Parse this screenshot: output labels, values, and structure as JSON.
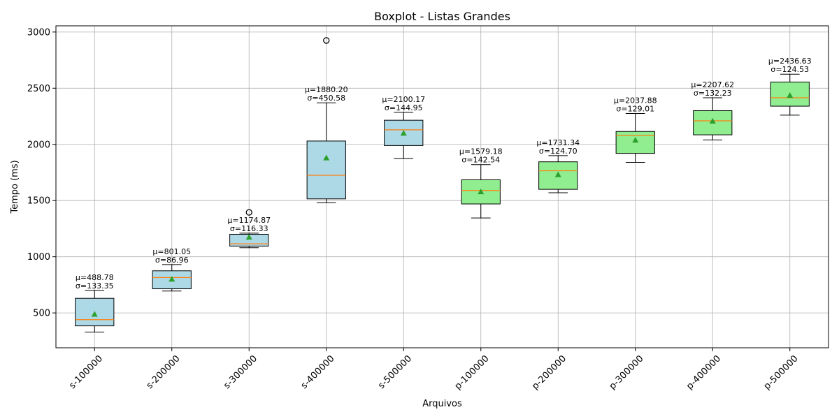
{
  "chart_data": {
    "type": "box",
    "title": "Boxplot - Listas Grandes",
    "xlabel": "Arquivos",
    "ylabel": "Tempo (ms)",
    "ylim": [
      190,
      3055
    ],
    "yticks": [
      500,
      1000,
      1500,
      2000,
      2500,
      3000
    ],
    "grid": true,
    "colors": {
      "sequential_fill": "#add8e6",
      "parallel_fill": "#90ee90",
      "median": "#ff7f0e",
      "mean_marker": "#2ca02c",
      "grid": "#b0b0b0"
    },
    "boxes": [
      {
        "label": "s-100000",
        "group": "sequential",
        "whisker_low": 330,
        "q1": 385,
        "median": 440,
        "q3": 630,
        "whisker_high": 700,
        "mean": 488.78,
        "outliers": [],
        "annot_mean": "μ=488.78",
        "annot_std": "σ=133.35"
      },
      {
        "label": "s-200000",
        "group": "sequential",
        "whisker_low": 695,
        "q1": 715,
        "median": 815,
        "q3": 875,
        "whisker_high": 930,
        "mean": 801.05,
        "outliers": [],
        "annot_mean": "μ=801.05",
        "annot_std": "σ=86.96"
      },
      {
        "label": "s-300000",
        "group": "sequential",
        "whisker_low": 1080,
        "q1": 1095,
        "median": 1115,
        "q3": 1200,
        "whisker_high": 1210,
        "mean": 1174.87,
        "outliers": [
          1395
        ],
        "annot_mean": "μ=1174.87",
        "annot_std": "σ=116.33"
      },
      {
        "label": "s-400000",
        "group": "sequential",
        "whisker_low": 1480,
        "q1": 1515,
        "median": 1725,
        "q3": 2030,
        "whisker_high": 2370,
        "mean": 1880.2,
        "outliers": [
          2925
        ],
        "annot_mean": "μ=1880.20",
        "annot_std": "σ=450.58"
      },
      {
        "label": "s-500000",
        "group": "sequential",
        "whisker_low": 1875,
        "q1": 1990,
        "median": 2130,
        "q3": 2215,
        "whisker_high": 2285,
        "mean": 2100.17,
        "outliers": [],
        "annot_mean": "μ=2100.17",
        "annot_std": "σ=144.95"
      },
      {
        "label": "p-100000",
        "group": "parallel",
        "whisker_low": 1345,
        "q1": 1470,
        "median": 1590,
        "q3": 1685,
        "whisker_high": 1820,
        "mean": 1579.18,
        "outliers": [],
        "annot_mean": "μ=1579.18",
        "annot_std": "σ=142.54"
      },
      {
        "label": "p-200000",
        "group": "parallel",
        "whisker_low": 1570,
        "q1": 1600,
        "median": 1765,
        "q3": 1845,
        "whisker_high": 1900,
        "mean": 1731.34,
        "outliers": [],
        "annot_mean": "μ=1731.34",
        "annot_std": "σ=124.70"
      },
      {
        "label": "p-300000",
        "group": "parallel",
        "whisker_low": 1840,
        "q1": 1920,
        "median": 2080,
        "q3": 2115,
        "whisker_high": 2275,
        "mean": 2037.88,
        "outliers": [],
        "annot_mean": "μ=2037.88",
        "annot_std": "σ=129.01"
      },
      {
        "label": "p-400000",
        "group": "parallel",
        "whisker_low": 2040,
        "q1": 2085,
        "median": 2210,
        "q3": 2300,
        "whisker_high": 2415,
        "mean": 2207.62,
        "outliers": [],
        "annot_mean": "μ=2207.62",
        "annot_std": "σ=132.23"
      },
      {
        "label": "p-500000",
        "group": "parallel",
        "whisker_low": 2260,
        "q1": 2340,
        "median": 2415,
        "q3": 2555,
        "whisker_high": 2625,
        "mean": 2436.63,
        "outliers": [],
        "annot_mean": "μ=2436.63",
        "annot_std": "σ=124.53"
      }
    ]
  }
}
